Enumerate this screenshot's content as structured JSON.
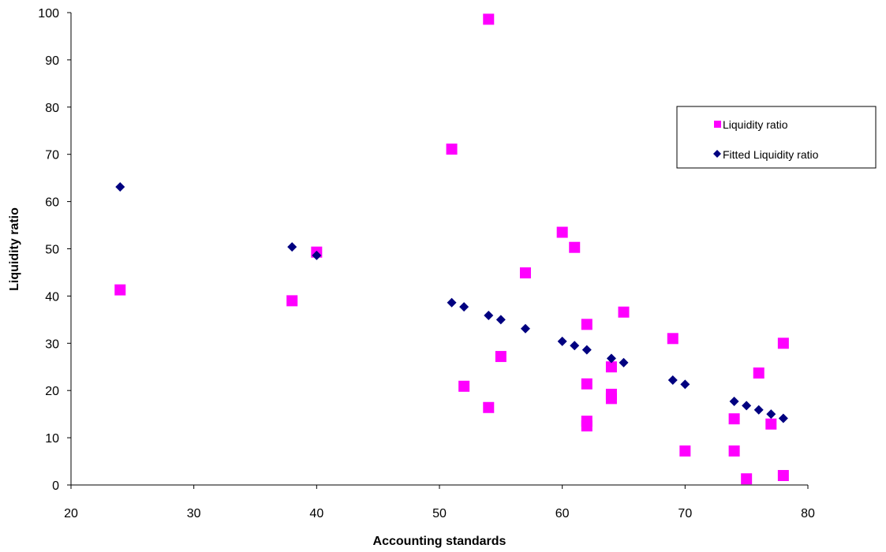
{
  "chart_data": {
    "type": "scatter",
    "title": "",
    "xlabel": "Accounting standards",
    "ylabel": "Liquidity ratio",
    "xlim": [
      20,
      80
    ],
    "ylim": [
      0,
      100
    ],
    "xticks": [
      20,
      30,
      40,
      50,
      60,
      70,
      80
    ],
    "yticks": [
      0,
      10,
      20,
      30,
      40,
      50,
      60,
      70,
      80,
      90,
      100
    ],
    "grid": false,
    "legend_position": "right",
    "series": [
      {
        "name": "Liquidity ratio",
        "marker": "square",
        "color": "#ff00ff",
        "points": [
          [
            24,
            41.3
          ],
          [
            38,
            39.0
          ],
          [
            40,
            49.3
          ],
          [
            51,
            71.1
          ],
          [
            52,
            20.9
          ],
          [
            54,
            98.6
          ],
          [
            54,
            16.4
          ],
          [
            55,
            27.2
          ],
          [
            57,
            44.9
          ],
          [
            60,
            53.5
          ],
          [
            61,
            50.3
          ],
          [
            62,
            34.0
          ],
          [
            62,
            21.4
          ],
          [
            62,
            13.5
          ],
          [
            62,
            12.5
          ],
          [
            64,
            25.0
          ],
          [
            64,
            19.2
          ],
          [
            64,
            18.3
          ],
          [
            65,
            36.6
          ],
          [
            69,
            31.0
          ],
          [
            70,
            7.2
          ],
          [
            74,
            14.0
          ],
          [
            74,
            7.2
          ],
          [
            75,
            1.3
          ],
          [
            76,
            23.7
          ],
          [
            77,
            12.9
          ],
          [
            78,
            30.0
          ],
          [
            78,
            2.0
          ]
        ]
      },
      {
        "name": "Fitted Liquidity ratio",
        "marker": "diamond",
        "color": "#000080",
        "points": [
          [
            24,
            63.1
          ],
          [
            38,
            50.4
          ],
          [
            40,
            48.6
          ],
          [
            51,
            38.6
          ],
          [
            52,
            37.7
          ],
          [
            54,
            35.9
          ],
          [
            55,
            35.0
          ],
          [
            57,
            33.1
          ],
          [
            60,
            30.4
          ],
          [
            61,
            29.5
          ],
          [
            62,
            28.6
          ],
          [
            64,
            26.8
          ],
          [
            65,
            25.9
          ],
          [
            69,
            22.2
          ],
          [
            70,
            21.3
          ],
          [
            74,
            17.7
          ],
          [
            75,
            16.8
          ],
          [
            76,
            15.9
          ],
          [
            77,
            15.0
          ],
          [
            78,
            14.1
          ]
        ]
      }
    ]
  }
}
